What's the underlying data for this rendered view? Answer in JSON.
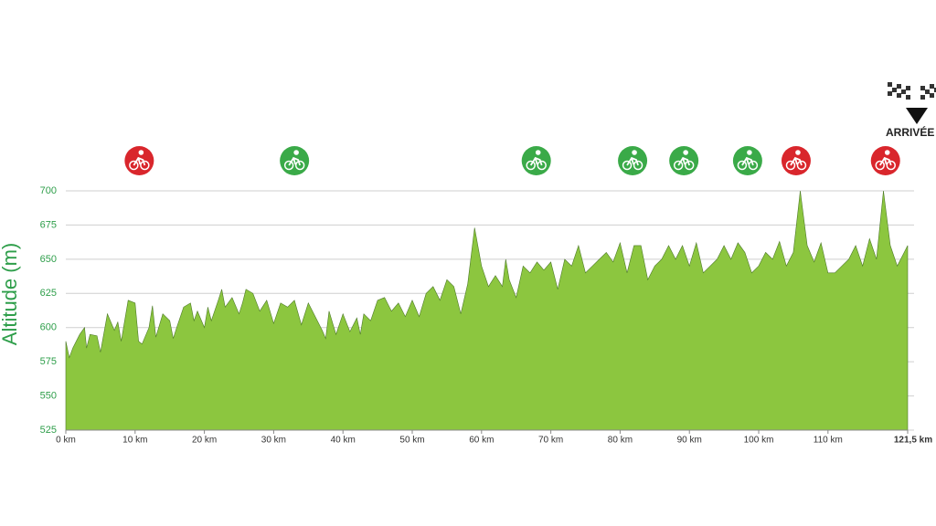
{
  "chart_data": {
    "type": "area",
    "ylabel": "Altitude (m)",
    "color": "#8cc63f",
    "line_color": "#4d7a28",
    "axis_label_color": "#2e9e4a",
    "highlight_tick_color": "#e3202a",
    "grid": true,
    "xlim": [
      0,
      121.5
    ],
    "ylim": [
      525,
      700
    ],
    "yticks": [
      525,
      550,
      575,
      600,
      625,
      650,
      675,
      700
    ],
    "xticks": [
      {
        "value": 0,
        "label": "0 km"
      },
      {
        "value": 10,
        "label": "10 km"
      },
      {
        "value": 20,
        "label": "20 km"
      },
      {
        "value": 30,
        "label": "30 km"
      },
      {
        "value": 40,
        "label": "40 km"
      },
      {
        "value": 50,
        "label": "50 km"
      },
      {
        "value": 60,
        "label": "60 km"
      },
      {
        "value": 70,
        "label": "70 km"
      },
      {
        "value": 80,
        "label": "80 km"
      },
      {
        "value": 90,
        "label": "90 km"
      },
      {
        "value": 100,
        "label": "100 km"
      },
      {
        "value": 110,
        "label": "110 km"
      },
      {
        "value": 121.5,
        "label": "121,5 km"
      }
    ],
    "x": [
      0,
      0.5,
      1,
      2,
      2.7,
      3,
      3.5,
      4.5,
      5,
      6,
      7,
      7.5,
      8,
      9,
      10,
      10.5,
      11,
      12,
      12.5,
      13,
      14,
      15,
      15.5,
      16,
      17,
      18,
      18.5,
      19,
      20,
      20.5,
      21,
      22,
      22.5,
      23,
      24,
      25,
      25.5,
      26,
      27,
      28,
      29,
      30,
      31,
      32,
      33,
      34,
      35,
      36,
      37,
      37.5,
      38,
      39,
      40,
      41,
      42,
      42.5,
      43,
      44,
      45,
      46,
      47,
      48,
      49,
      50,
      51,
      52,
      53,
      54,
      55,
      56,
      57,
      58,
      59,
      60,
      61,
      62,
      63,
      63.5,
      64,
      65,
      66,
      67,
      68,
      69,
      70,
      71,
      72,
      73,
      74,
      75,
      76,
      77,
      78,
      79,
      80,
      81,
      82,
      83,
      84,
      85,
      86,
      87,
      88,
      89,
      90,
      91,
      92,
      93,
      94,
      95,
      96,
      97,
      98,
      99,
      100,
      101,
      102,
      103,
      104,
      105,
      106,
      107,
      108,
      109,
      110,
      111,
      112,
      113,
      114,
      115,
      116,
      117,
      118,
      119,
      120,
      121,
      121.5
    ],
    "values": [
      590,
      578,
      585,
      595,
      600,
      585,
      595,
      594,
      582,
      610,
      598,
      604,
      590,
      620,
      618,
      590,
      588,
      600,
      616,
      593,
      610,
      605,
      592,
      600,
      615,
      618,
      605,
      612,
      600,
      615,
      605,
      620,
      628,
      615,
      622,
      610,
      618,
      628,
      625,
      612,
      620,
      603,
      618,
      615,
      620,
      602,
      618,
      608,
      598,
      592,
      612,
      595,
      610,
      597,
      607,
      595,
      610,
      605,
      620,
      622,
      612,
      618,
      608,
      620,
      608,
      625,
      630,
      620,
      635,
      630,
      610,
      632,
      673,
      645,
      630,
      638,
      630,
      650,
      635,
      622,
      645,
      640,
      648,
      642,
      648,
      628,
      650,
      645,
      660,
      640,
      645,
      650,
      655,
      648,
      662,
      640,
      660,
      660,
      635,
      645,
      650,
      660,
      650,
      660,
      645,
      662,
      640,
      645,
      650,
      660,
      650,
      662,
      655,
      640,
      645,
      655,
      650,
      663,
      645,
      655,
      700,
      660,
      648,
      662,
      640,
      640,
      645,
      650,
      660,
      645,
      665,
      650,
      700,
      660,
      645,
      655,
      660
    ],
    "markers": [
      {
        "x": 10.6,
        "color": "#d9262c"
      },
      {
        "x": 33.0,
        "color": "#3aaa48"
      },
      {
        "x": 67.9,
        "color": "#3aaa48"
      },
      {
        "x": 81.8,
        "color": "#3aaa48"
      },
      {
        "x": 89.2,
        "color": "#3aaa48"
      },
      {
        "x": 98.4,
        "color": "#3aaa48"
      },
      {
        "x": 105.4,
        "color": "#d9262c"
      },
      {
        "x": 118.3,
        "color": "#d9262c"
      }
    ],
    "finish_label": "ARRIVÉE"
  }
}
